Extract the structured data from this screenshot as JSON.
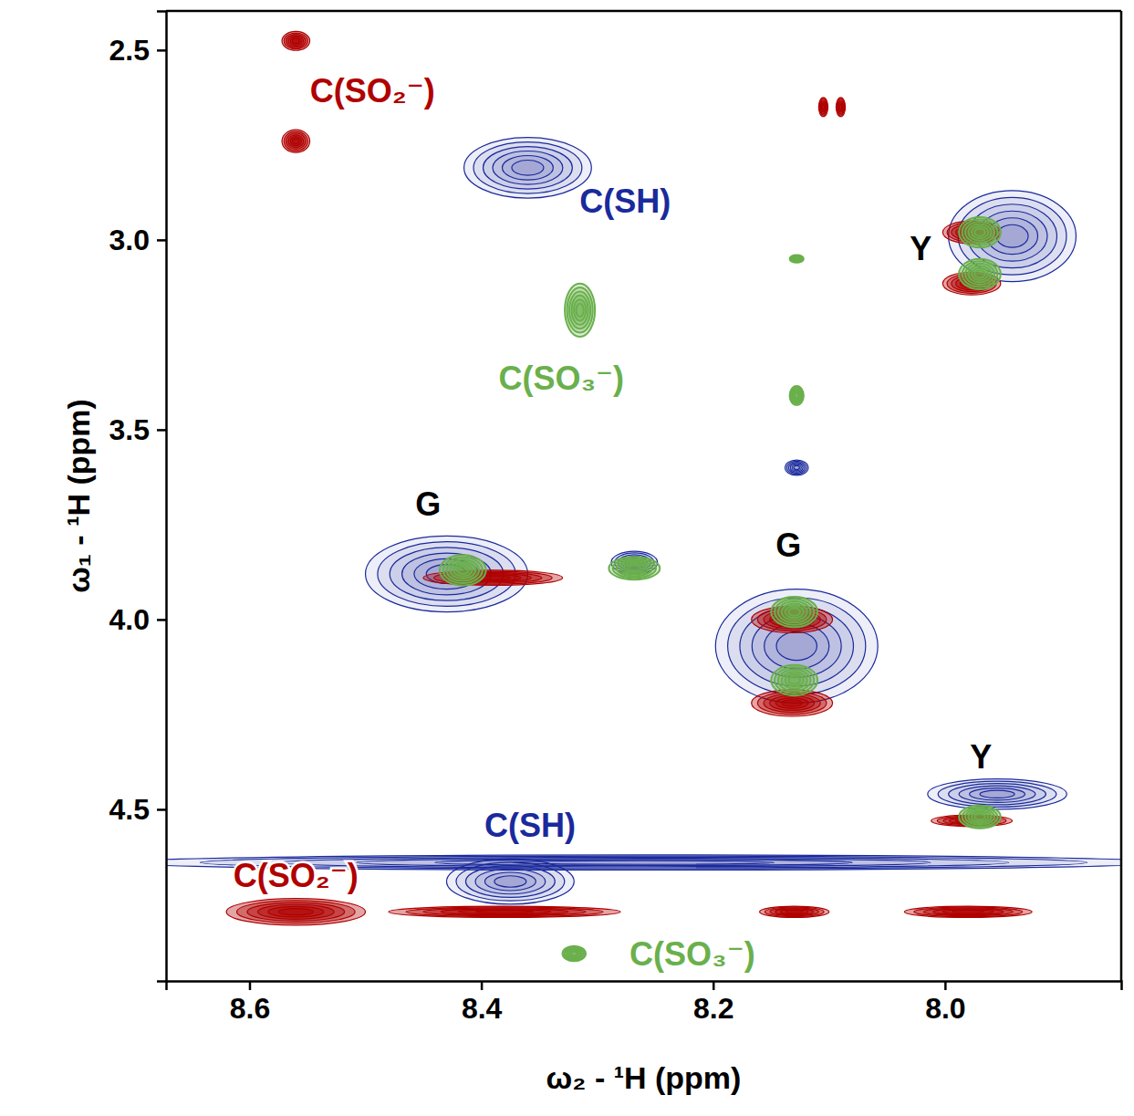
{
  "chart_data": {
    "type": "contour",
    "x_label": "ω₂ - ¹H (ppm)",
    "y_label": "ω₁ - ¹H (ppm)",
    "xlim": [
      8.672,
      7.848
    ],
    "ylim": [
      2.397,
      4.952
    ],
    "xticks": [
      8.6,
      8.4,
      8.2,
      {
        "value": 8,
        "label": "8.0"
      }
    ],
    "yticks": [
      2.5,
      {
        "value": 3,
        "label": "3.0"
      },
      3.5,
      {
        "value": 4,
        "label": "4.0"
      },
      4.5
    ],
    "series": [
      {
        "color": "#1a2a9c",
        "x": [
          8.36,
          7.942,
          8.128,
          8.43,
          8.128,
          8.268,
          7.955,
          8.375,
          8.26
        ],
        "values": [
          2.81,
          2.99,
          3.6,
          3.88,
          4.07,
          3.85,
          4.46,
          4.69,
          4.64
        ],
        "width_x": [
          0.055,
          0.055,
          0.01,
          0.07,
          0.07,
          0.02,
          0.06,
          0.055,
          0.45
        ],
        "width_y": [
          0.08,
          0.12,
          0.02,
          0.1,
          0.15,
          0.03,
          0.04,
          0.06,
          0.02
        ]
      },
      {
        "color": "#b00000",
        "x": [
          8.56,
          8.56,
          8.105,
          8.09,
          7.977,
          7.977,
          8.39,
          8.132,
          8.132,
          7.977,
          8.56,
          8.38,
          8.13,
          7.98
        ],
        "values": [
          2.476,
          2.74,
          2.65,
          2.65,
          2.98,
          3.115,
          3.89,
          4.0,
          4.22,
          4.53,
          4.77,
          4.77,
          4.77,
          4.77
        ],
        "width_x": [
          0.012,
          0.012,
          0.004,
          0.004,
          0.025,
          0.025,
          0.06,
          0.035,
          0.035,
          0.035,
          0.06,
          0.1,
          0.03,
          0.055
        ],
        "width_y": [
          0.025,
          0.03,
          0.025,
          0.025,
          0.03,
          0.03,
          0.02,
          0.035,
          0.035,
          0.015,
          0.035,
          0.015,
          0.015,
          0.015
        ]
      },
      {
        "color": "#6ab04c",
        "x": [
          8.315,
          7.97,
          7.97,
          8.128,
          8.128,
          8.416,
          8.268,
          8.13,
          8.13,
          7.97,
          8.32
        ],
        "values": [
          3.185,
          2.98,
          3.09,
          3.05,
          3.41,
          3.87,
          3.865,
          3.98,
          4.16,
          4.52,
          4.88
        ],
        "width_x": [
          0.013,
          0.018,
          0.018,
          0.006,
          0.006,
          0.02,
          0.022,
          0.02,
          0.02,
          0.018,
          0.01
        ],
        "width_y": [
          0.07,
          0.04,
          0.04,
          0.01,
          0.025,
          0.04,
          0.03,
          0.04,
          0.04,
          0.03,
          0.02
        ]
      }
    ],
    "annotations": [
      {
        "text": "C(SO₂⁻)",
        "x": 8.494,
        "y": 2.608,
        "color": "#b00000"
      },
      {
        "text": "C(SH)",
        "x": 8.276,
        "y": 2.897,
        "color": "#1a2a9c"
      },
      {
        "text": "C(SO₃⁻)",
        "x": 8.331,
        "y": 3.365,
        "color": "#6ab04c"
      },
      {
        "text": "Y",
        "x": 8.021,
        "y": 3.022,
        "color": "#000000"
      },
      {
        "text": "G",
        "x": 8.446,
        "y": 3.695,
        "color": "#000000"
      },
      {
        "text": "G",
        "x": 8.135,
        "y": 3.805,
        "color": "#000000"
      },
      {
        "text": "Y",
        "x": 7.969,
        "y": 4.363,
        "color": "#000000"
      },
      {
        "text": "C(SH)",
        "x": 8.358,
        "y": 4.543,
        "color": "#1a2a9c"
      },
      {
        "text": "C(SO₂⁻)",
        "x": 8.56,
        "y": 4.675,
        "color": "#b00000"
      },
      {
        "text": "C(SO₃⁻)",
        "x": 8.218,
        "y": 4.88,
        "color": "#6ab04c"
      }
    ]
  }
}
